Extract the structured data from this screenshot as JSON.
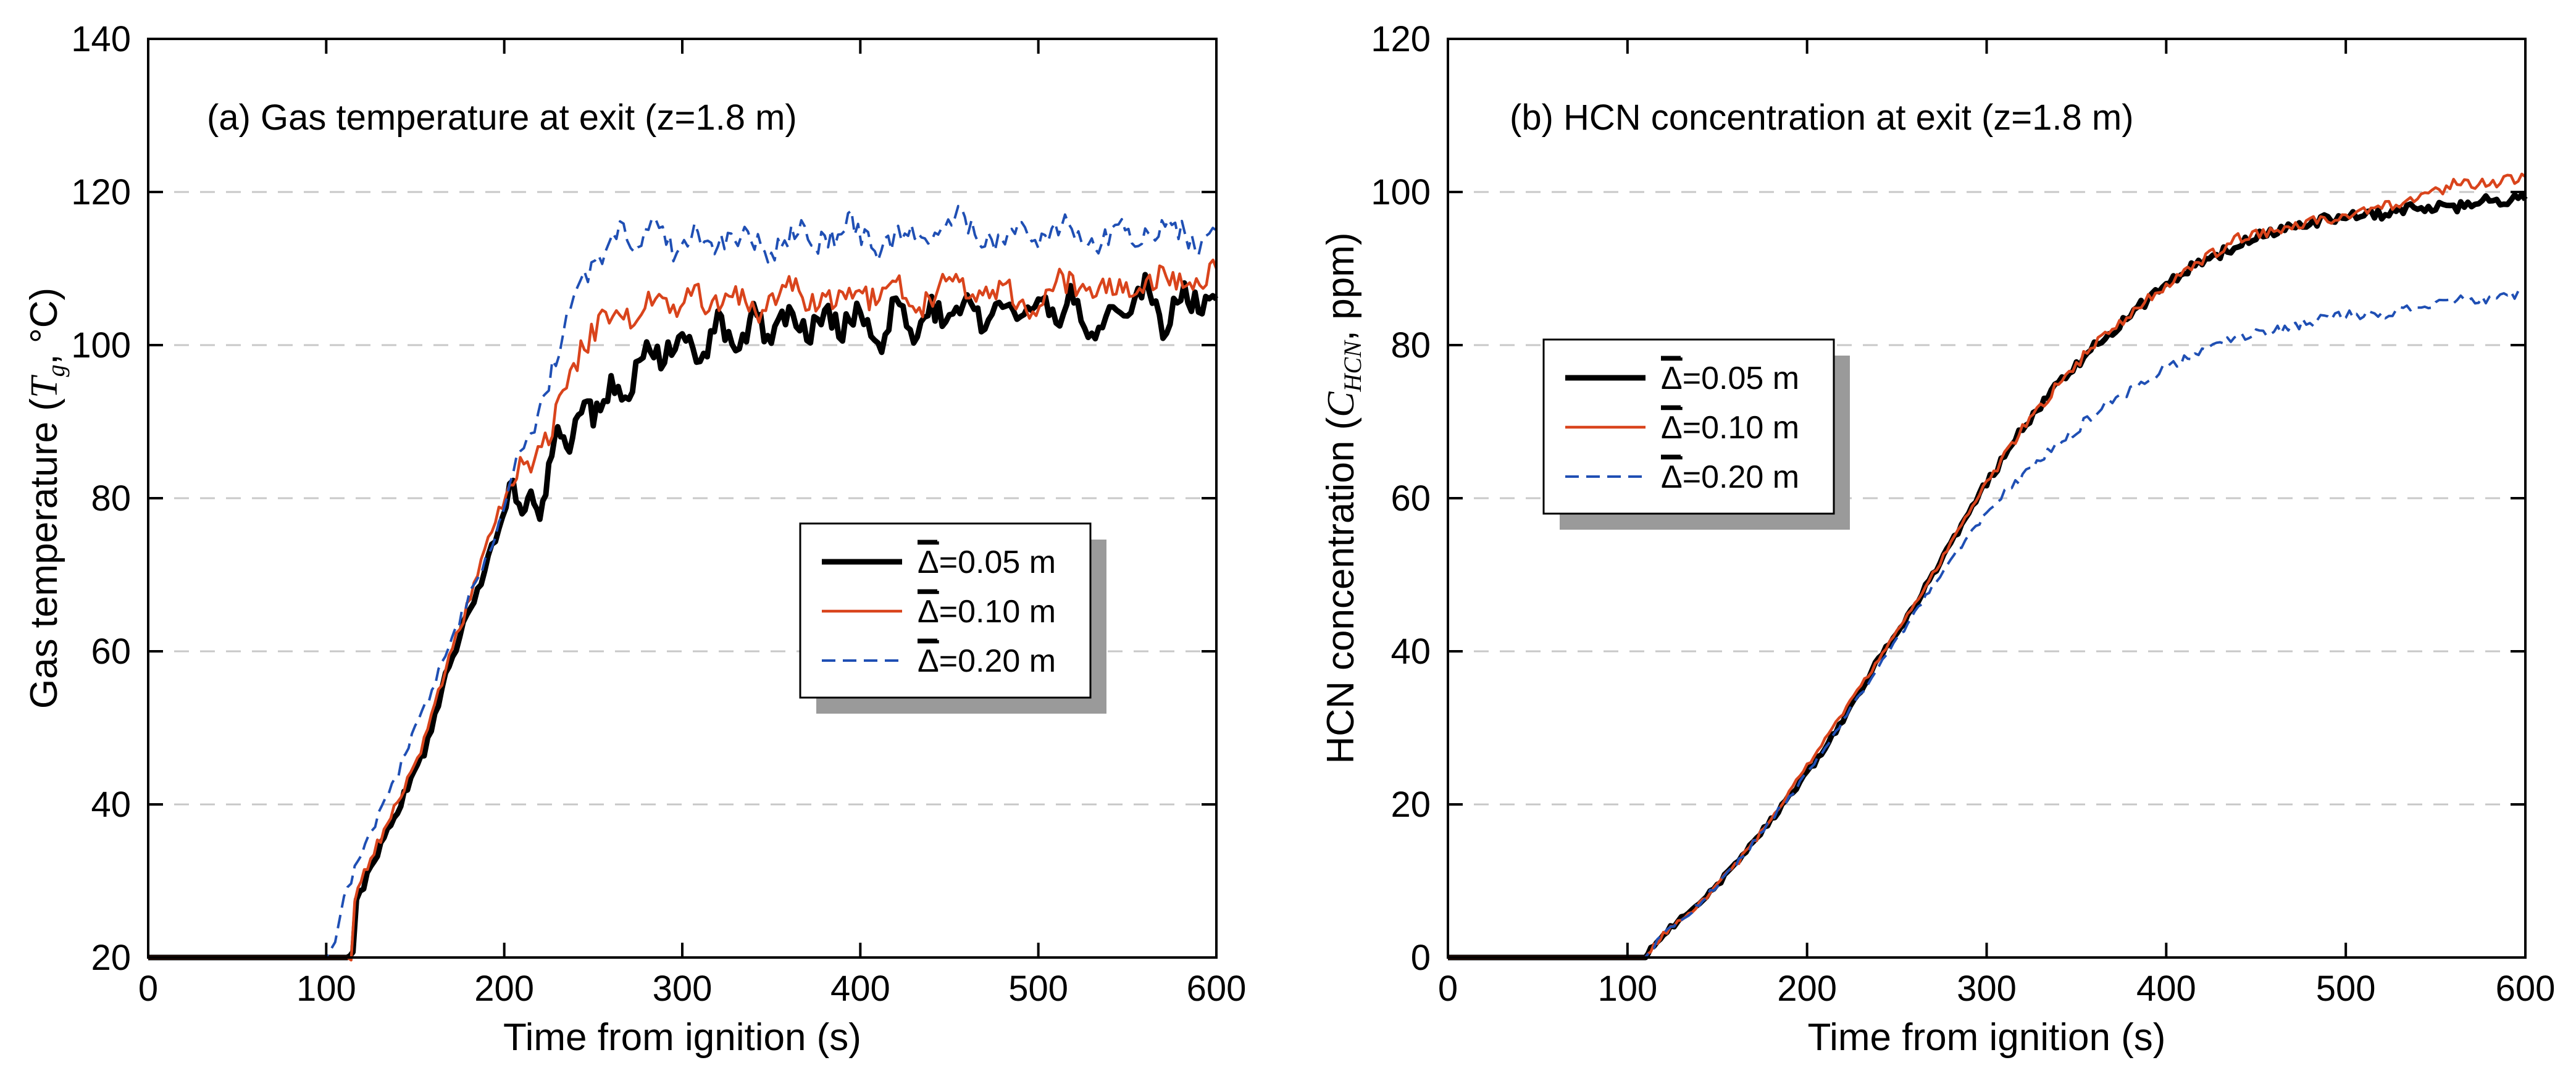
{
  "chart_data": [
    {
      "type": "line",
      "title": "(a) Gas temperature at exit (z=1.8 m)",
      "xlabel": "Time from ignition (s)",
      "ylabel": "Gas temperature (",
      "ylabel_symbol": "T",
      "ylabel_sub": "g",
      "ylabel_tail": ", °C)",
      "xlim": [
        0,
        600
      ],
      "ylim": [
        20,
        140
      ],
      "x_ticks": [
        0,
        100,
        200,
        300,
        400,
        500,
        600
      ],
      "y_ticks": [
        20,
        40,
        60,
        80,
        100,
        120,
        140
      ],
      "grid": "horizontal dashed",
      "legend_position": "center-right",
      "series": [
        {
          "name": "Δ̄=0.05 m",
          "delta_symbol": "Δ",
          "name_suffix": "=0.05 m",
          "color": "#000000",
          "style": "solid-thick",
          "x": [
            0,
            110,
            115,
            117,
            125,
            140,
            155,
            165,
            175,
            185,
            195,
            205,
            210,
            215,
            220,
            225,
            230,
            235,
            240,
            245,
            250,
            260,
            270,
            280,
            290,
            300,
            310,
            320,
            330,
            340,
            350,
            360,
            370,
            380,
            390,
            400,
            410,
            420,
            430,
            440,
            450,
            460,
            470,
            480,
            490,
            500,
            510,
            520,
            530,
            540,
            550,
            560,
            570,
            580,
            590,
            600
          ],
          "y": [
            20,
            20,
            20,
            27,
            32,
            39,
            47,
            55,
            62,
            68,
            75,
            82,
            78,
            81,
            77,
            84,
            88,
            86,
            89,
            92,
            91,
            95,
            94,
            100,
            98,
            103,
            97,
            104,
            99,
            104,
            100,
            105,
            101,
            104,
            102,
            105,
            99,
            106,
            101,
            105,
            103,
            106,
            102,
            106,
            104,
            107,
            103,
            107,
            100,
            106,
            104,
            108,
            102,
            107,
            105,
            106
          ]
        },
        {
          "name": "Δ̄=0.10 m",
          "delta_symbol": "Δ",
          "name_suffix": "=0.10 m",
          "color": "#d9441c",
          "style": "solid-thin",
          "x": [
            0,
            110,
            114,
            116,
            125,
            140,
            155,
            165,
            175,
            185,
            195,
            205,
            215,
            225,
            235,
            245,
            255,
            265,
            275,
            285,
            295,
            305,
            315,
            330,
            345,
            360,
            375,
            390,
            405,
            420,
            435,
            450,
            465,
            480,
            495,
            510,
            525,
            540,
            555,
            570,
            585,
            600
          ],
          "y": [
            20,
            20,
            20,
            28,
            33,
            40,
            48,
            56,
            63,
            70,
            77,
            83,
            85,
            88,
            95,
            100,
            103,
            105,
            103,
            107,
            104,
            108,
            105,
            107,
            104,
            108,
            105,
            107,
            106,
            108,
            105,
            109,
            106,
            108,
            104,
            109,
            107,
            108,
            106,
            110,
            107,
            110
          ]
        },
        {
          "name": "Δ̄=0.20 m",
          "delta_symbol": "Δ",
          "name_suffix": "=0.20 m",
          "color": "#1f4fb4",
          "style": "dashed",
          "x": [
            0,
            100,
            105,
            110,
            120,
            135,
            150,
            165,
            180,
            195,
            205,
            215,
            225,
            235,
            245,
            255,
            265,
            275,
            285,
            295,
            305,
            320,
            335,
            350,
            365,
            380,
            395,
            410,
            425,
            440,
            455,
            470,
            485,
            500,
            515,
            530,
            545,
            560,
            575,
            590,
            600
          ],
          "y": [
            20,
            20,
            22,
            28,
            34,
            41,
            50,
            58,
            67,
            75,
            84,
            89,
            95,
            103,
            109,
            112,
            115,
            113,
            116,
            112,
            115,
            113,
            114,
            112,
            115,
            113,
            116,
            112,
            115,
            114,
            117,
            113,
            115,
            114,
            116,
            113,
            115,
            114,
            116,
            113,
            115
          ]
        }
      ]
    },
    {
      "type": "line",
      "title": "(b) HCN concentration at exit (z=1.8 m)",
      "xlabel": "Time from ignition (s)",
      "ylabel": "HCN concentration (",
      "ylabel_symbol": "C",
      "ylabel_sub": "HCN",
      "ylabel_tail": ", ppm)",
      "xlim": [
        0,
        600
      ],
      "ylim": [
        0,
        120
      ],
      "x_ticks": [
        0,
        100,
        200,
        300,
        400,
        500,
        600
      ],
      "y_ticks": [
        0,
        20,
        40,
        60,
        80,
        100,
        120
      ],
      "grid": "horizontal dashed",
      "legend_position": "upper-left",
      "series": [
        {
          "name": "Δ̄=0.05 m",
          "delta_symbol": "Δ",
          "name_suffix": "=0.05 m",
          "color": "#000000",
          "style": "solid-thick",
          "x": [
            0,
            110,
            113,
            120,
            140,
            160,
            180,
            200,
            220,
            240,
            260,
            280,
            300,
            320,
            340,
            360,
            380,
            400,
            420,
            440,
            460,
            480,
            500,
            520,
            540,
            560,
            580,
            600
          ],
          "y": [
            0,
            0,
            1,
            3,
            7,
            12,
            18,
            24,
            31,
            39,
            46,
            54,
            62,
            69,
            75,
            80,
            84,
            88,
            91,
            93,
            95,
            96,
            97,
            97,
            98,
            98,
            99,
            99
          ]
        },
        {
          "name": "Δ̄=0.10 m",
          "delta_symbol": "Δ",
          "name_suffix": "=0.10 m",
          "color": "#d9441c",
          "style": "solid-thin",
          "x": [
            0,
            110,
            113,
            120,
            140,
            160,
            180,
            200,
            220,
            240,
            260,
            280,
            300,
            320,
            340,
            360,
            380,
            400,
            420,
            440,
            460,
            480,
            500,
            520,
            540,
            560,
            580,
            600
          ],
          "y": [
            0,
            0,
            1,
            3,
            7,
            12,
            18,
            25,
            32,
            39,
            46,
            54,
            62,
            69,
            75,
            80,
            84,
            88,
            91,
            94,
            95,
            96,
            97,
            98,
            99,
            101,
            101,
            102
          ]
        },
        {
          "name": "Δ̄=0.20 m",
          "delta_symbol": "Δ",
          "name_suffix": "=0.20 m",
          "color": "#1f4fb4",
          "style": "dashed",
          "x": [
            0,
            110,
            113,
            120,
            140,
            160,
            180,
            200,
            220,
            240,
            260,
            280,
            300,
            320,
            340,
            360,
            380,
            400,
            420,
            440,
            460,
            480,
            500,
            520,
            540,
            560,
            580,
            600
          ],
          "y": [
            0,
            0,
            1,
            3,
            7,
            12,
            18,
            24,
            31,
            38,
            45,
            52,
            58,
            63,
            67,
            71,
            74,
            77,
            79,
            81,
            82,
            83,
            84,
            84,
            85,
            86,
            86,
            87
          ]
        }
      ]
    }
  ]
}
